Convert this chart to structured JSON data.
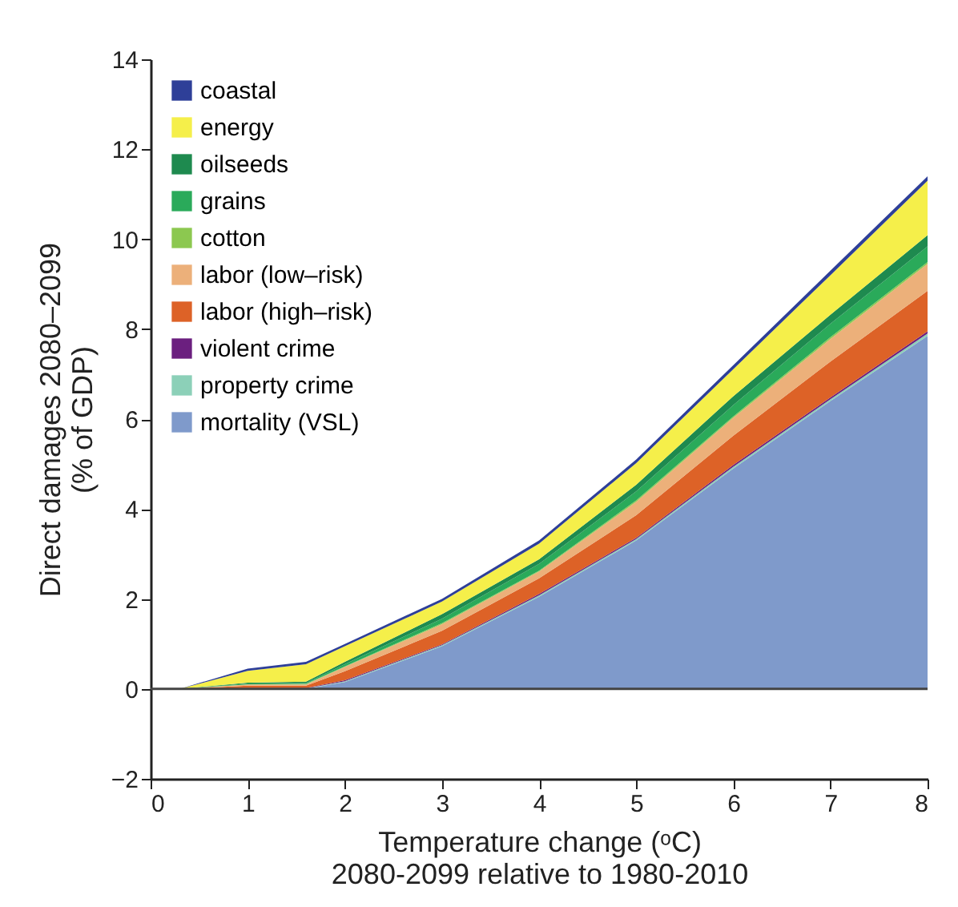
{
  "chart_data": {
    "type": "area",
    "stacked": true,
    "x": [
      0.3,
      1,
      1.6,
      2,
      3,
      4,
      5,
      6,
      7,
      8
    ],
    "series": [
      {
        "name": "mortality (VSL)",
        "color": "#7f9acb",
        "values": [
          0,
          0,
          0,
          0.15,
          0.95,
          2.05,
          3.3,
          4.9,
          6.4,
          7.85
        ]
      },
      {
        "name": "property crime",
        "color": "#8cd0b8",
        "values": [
          0,
          0.01,
          0.01,
          0.02,
          0.02,
          0.03,
          0.03,
          0.04,
          0.04,
          0.05
        ]
      },
      {
        "name": "violent crime",
        "color": "#6b1f7f",
        "values": [
          0,
          0.01,
          0.01,
          0.02,
          0.02,
          0.03,
          0.03,
          0.04,
          0.04,
          0.05
        ]
      },
      {
        "name": "labor (high–risk)",
        "color": "#dd6227",
        "values": [
          0,
          0.05,
          0.05,
          0.2,
          0.3,
          0.35,
          0.5,
          0.65,
          0.8,
          0.9
        ]
      },
      {
        "name": "labor (low–risk)",
        "color": "#ecb07a",
        "values": [
          0,
          0.03,
          0.03,
          0.1,
          0.15,
          0.15,
          0.3,
          0.4,
          0.5,
          0.6
        ]
      },
      {
        "name": "cotton",
        "color": "#8cc850",
        "values": [
          0,
          0,
          0.01,
          0.01,
          0.02,
          0.02,
          0.03,
          0.03,
          0.04,
          0.04
        ]
      },
      {
        "name": "grains",
        "color": "#2aaa5a",
        "values": [
          0,
          0.02,
          0.02,
          0.05,
          0.1,
          0.15,
          0.2,
          0.25,
          0.3,
          0.35
        ]
      },
      {
        "name": "oilseeds",
        "color": "#1e8a4f",
        "values": [
          0,
          0.02,
          0.03,
          0.05,
          0.1,
          0.1,
          0.15,
          0.2,
          0.2,
          0.25
        ]
      },
      {
        "name": "energy",
        "color": "#f5ef4a",
        "values": [
          0,
          0.26,
          0.39,
          0.35,
          0.28,
          0.35,
          0.48,
          0.6,
          0.88,
          1.21
        ]
      },
      {
        "name": "coastal",
        "color": "#2e3f98",
        "values": [
          0,
          0.05,
          0.05,
          0.05,
          0.06,
          0.07,
          0.08,
          0.09,
          0.1,
          0.1
        ]
      }
    ],
    "xlabel": "Temperature change (ᵒC)",
    "ylabel": "Direct damages 2080–2099\n(% of GDP)",
    "annotations": [
      "2080-2099 relative to 1980-2010"
    ],
    "xlim": [
      0,
      8
    ],
    "xticks": [
      0,
      1,
      2,
      3,
      4,
      5,
      6,
      7,
      8
    ],
    "ylim": [
      -2,
      14
    ],
    "yticks": [
      -2,
      0,
      2,
      4,
      6,
      8,
      10,
      12,
      14
    ],
    "ref_lines": [
      {
        "axis": "y",
        "value": 0,
        "color": "#444444"
      }
    ],
    "legend": "top left",
    "grid": false
  }
}
